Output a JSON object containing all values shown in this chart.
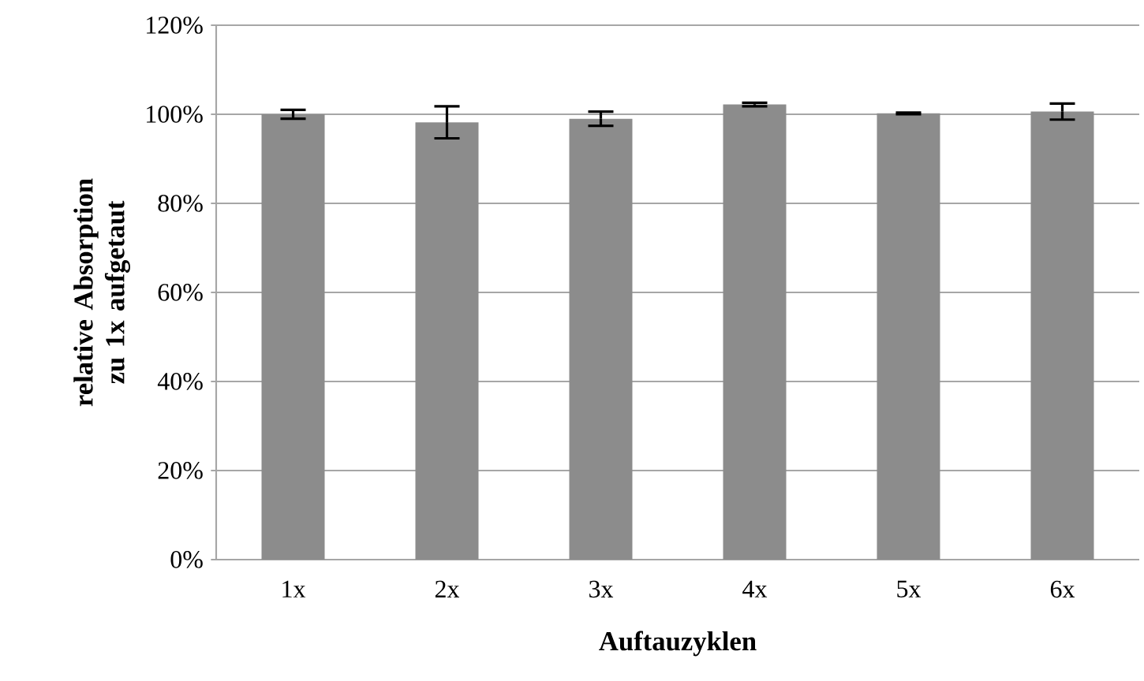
{
  "chart_data": {
    "type": "bar",
    "xlabel": "Auftauzyklen",
    "ylabel": "relative Absorption zu 1x aufgetaut",
    "categories": [
      "1x",
      "2x",
      "3x",
      "4x",
      "5x",
      "6x"
    ],
    "values": [
      100,
      98.2,
      99,
      102.2,
      100.2,
      100.6
    ],
    "errors": [
      1,
      3.6,
      1.6,
      0.4,
      0.2,
      1.8
    ],
    "color": "#8c8c8c",
    "ylim": [
      0,
      120
    ],
    "yticks": [
      {
        "value": 0,
        "label": "0%"
      },
      {
        "value": 20,
        "label": "20%"
      },
      {
        "value": 40,
        "label": "40%"
      },
      {
        "value": 60,
        "label": "60%"
      },
      {
        "value": 80,
        "label": "80%"
      },
      {
        "value": 100,
        "label": "100%"
      },
      {
        "value": 120,
        "label": "120%"
      }
    ],
    "grid": "y"
  }
}
